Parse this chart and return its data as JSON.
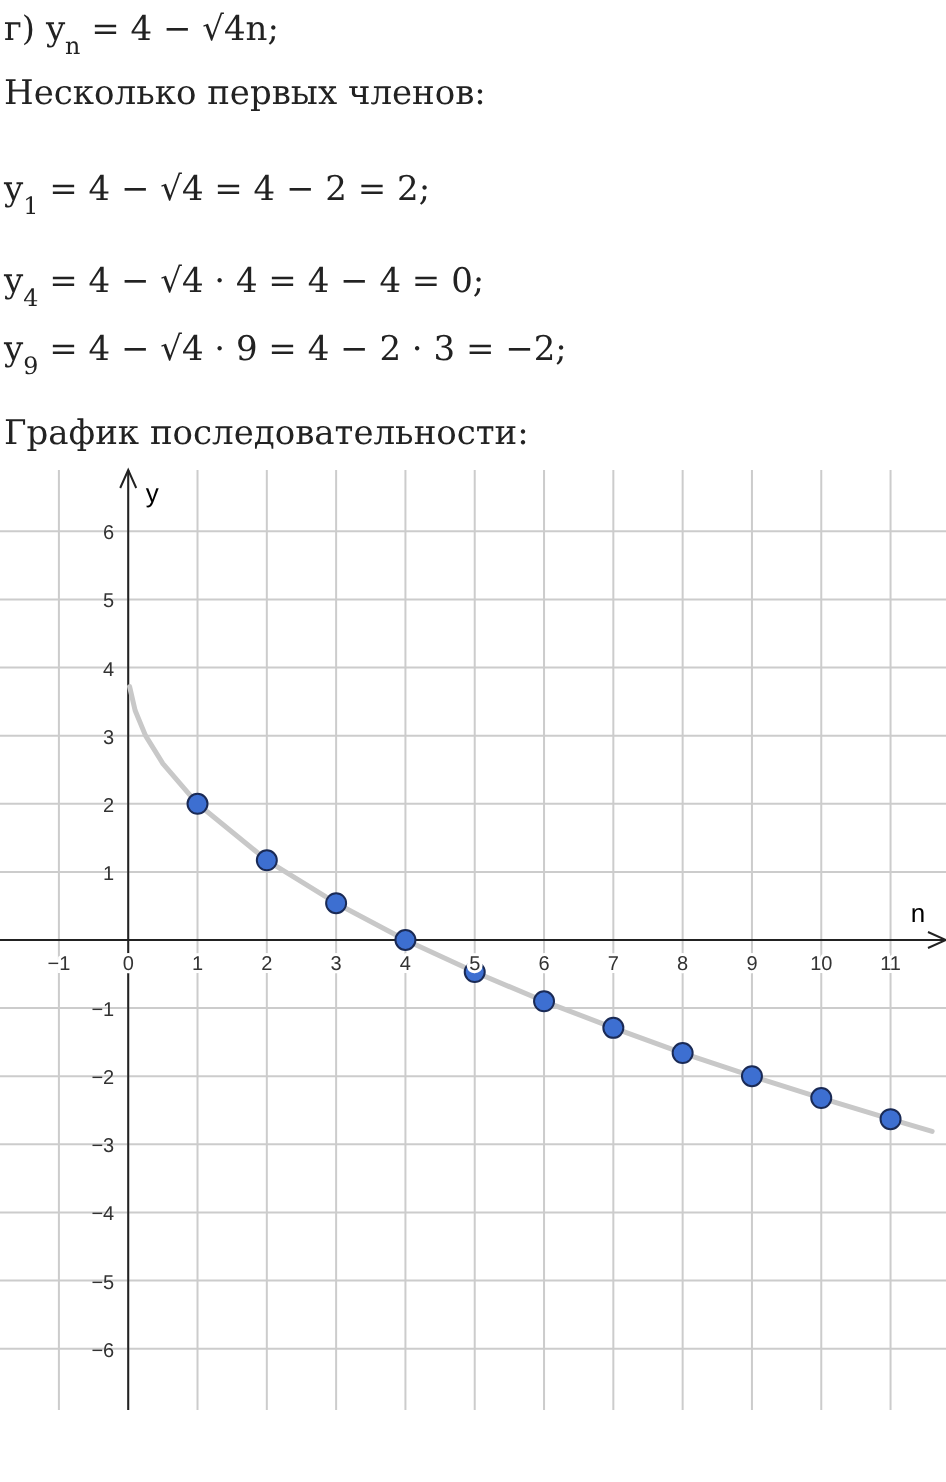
{
  "chart_data": {
    "type": "scatter",
    "title": "График последовательности:",
    "annotations": [
      "г) y$_{n}$ = 4 − √4n;",
      "Несколько первых членов:",
      "y$_{1}$ = 4 − √4 = 4 − 2 = 2;",
      "y$_{4}$ = 4 − √4 · 4 = 4 − 4 = 0;",
      "y$_{9}$ = 4 − √4 · 9 = 4 − 2 · 3 = −2;"
    ],
    "xlabel": "n",
    "ylabel": "y",
    "xlim": [
      -1.85,
      11.8
    ],
    "ylim": [
      -6.9,
      6.9
    ],
    "xticks": [
      -1,
      0,
      1,
      2,
      3,
      4,
      5,
      6,
      7,
      8,
      9,
      10,
      11
    ],
    "yticks": [
      -6,
      -5,
      -4,
      -3,
      -2,
      -1,
      {
        "value": 0,
        "label": null
      },
      1,
      2,
      3,
      4,
      5,
      6
    ],
    "grid": true,
    "series": [
      {
        "type": "line",
        "color": "#c8c8c8",
        "x": [
          0.02,
          0.1,
          0.25,
          0.5,
          1,
          2,
          3,
          4,
          5,
          6,
          7,
          8,
          9,
          10,
          11,
          11.6
        ],
        "values": [
          3.72,
          3.37,
          3,
          2.59,
          2,
          1.17,
          0.54,
          0,
          -0.47,
          -0.9,
          -1.29,
          -1.66,
          -2,
          -2.32,
          -2.63,
          -2.81
        ]
      },
      {
        "color": "#3d6fd1",
        "x": [
          1,
          2,
          3,
          4,
          5,
          6,
          7,
          8,
          9,
          10,
          11
        ],
        "values": [
          2,
          1.17,
          0.54,
          0,
          -0.47,
          -0.9,
          -1.29,
          -1.66,
          -2,
          -2.32,
          -2.63
        ]
      }
    ]
  }
}
